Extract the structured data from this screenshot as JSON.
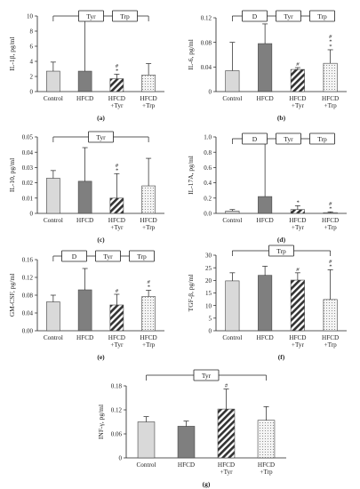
{
  "chart_data": [
    {
      "type": "bar",
      "panel_label": "(a)",
      "ylabel": "IL-1β, pg/ml",
      "ylim": [
        0,
        10
      ],
      "yticks": [
        "0",
        "2",
        "4",
        "6",
        "8",
        "10"
      ],
      "ytick_values": [
        0,
        2,
        4,
        6,
        8,
        10
      ],
      "categories": [
        "Control",
        "HFCD",
        "HFCD\n+Tyr",
        "HFCD\n+Trp"
      ],
      "values": [
        2.7,
        2.7,
        1.7,
        2.2
      ],
      "errors": [
        1.2,
        6.8,
        0.6,
        1.5
      ],
      "marks": [
        "",
        "",
        "#\n*",
        ""
      ],
      "boxes": [
        "Tyr",
        "Trp"
      ]
    },
    {
      "type": "bar",
      "panel_label": "(b)",
      "ylabel": "IL-6, pg/ml",
      "ylim": [
        0,
        0.12
      ],
      "yticks": [
        "0",
        "0.04",
        "0.08",
        "0.12"
      ],
      "ytick_values": [
        0,
        0.04,
        0.08,
        0.12
      ],
      "categories": [
        "Control",
        "HFCD",
        "HFCD\n+Tyr",
        "HFCD\n+Trp"
      ],
      "values": [
        0.034,
        0.078,
        0.036,
        0.046
      ],
      "errors": [
        0.046,
        0.032,
        0.003,
        0.022
      ],
      "marks": [
        "",
        "",
        "#",
        "#\n*\n*"
      ],
      "boxes": [
        "D",
        "Tyr",
        "Trp"
      ]
    },
    {
      "type": "bar",
      "panel_label": "(c)",
      "ylabel": "IL-10, pg/ml",
      "ylim": [
        0,
        0.05
      ],
      "yticks": [
        "0",
        "0.01",
        "0.02",
        "0.03",
        "0.04",
        "0.05"
      ],
      "ytick_values": [
        0,
        0.01,
        0.02,
        0.03,
        0.04,
        0.05
      ],
      "categories": [
        "Control",
        "HFCD",
        "HFCD\n+Tyr",
        "HFCD\n+Trp"
      ],
      "values": [
        0.023,
        0.021,
        0.01,
        0.018
      ],
      "errors": [
        0.005,
        0.022,
        0.016,
        0.018
      ],
      "marks": [
        "",
        "",
        "#\n*",
        ""
      ],
      "boxes": [
        "Tyr"
      ]
    },
    {
      "type": "bar",
      "panel_label": "(d)",
      "ylabel": "IL-17A, pg/ml",
      "ylim": [
        0,
        1.0
      ],
      "yticks": [
        "0.0",
        "0.2",
        "0.4",
        "0.6",
        "0.8",
        "1.0"
      ],
      "ytick_values": [
        0,
        0.2,
        0.4,
        0.6,
        0.8,
        1.0
      ],
      "categories": [
        "Control",
        "HFCD",
        "HFCD\n+Tyr",
        "HFCD\n+Trp"
      ],
      "values": [
        0.03,
        0.22,
        0.05,
        0.01
      ],
      "errors": [
        0.02,
        0.74,
        0.05,
        0.01
      ],
      "marks": [
        "",
        "",
        "*",
        "#\n*"
      ],
      "boxes": [
        "D",
        "Tyr",
        "Trp"
      ]
    },
    {
      "type": "bar",
      "panel_label": "(e)",
      "ylabel": "GM-CSF, pg/ml",
      "ylim": [
        0,
        0.16
      ],
      "yticks": [
        "0.00",
        "0.04",
        "0.08",
        "0.12",
        "0.16"
      ],
      "ytick_values": [
        0,
        0.04,
        0.08,
        0.12,
        0.16
      ],
      "categories": [
        "Control",
        "HFCD",
        "HFCD\n+Tyr",
        "HFCD\n+Trp"
      ],
      "values": [
        0.065,
        0.092,
        0.058,
        0.077
      ],
      "errors": [
        0.015,
        0.048,
        0.024,
        0.014
      ],
      "marks": [
        "",
        "",
        "#",
        "#\n*"
      ],
      "boxes": [
        "D",
        "Tyr",
        "Trp"
      ]
    },
    {
      "type": "bar",
      "panel_label": "(f)",
      "ylabel": "TGF-β, pg/ml",
      "ylim": [
        0,
        30
      ],
      "yticks": [
        "0",
        "5",
        "10",
        "15",
        "20",
        "25",
        "30"
      ],
      "ytick_values": [
        0,
        5,
        10,
        15,
        20,
        25,
        30
      ],
      "categories": [
        "Control",
        "HFCD",
        "HFCD\n+Tyr",
        "HFCD\n+Trp"
      ],
      "values": [
        19.8,
        22,
        20.1,
        12.4
      ],
      "errors": [
        3.2,
        3.6,
        2.9,
        11.8
      ],
      "marks": [
        "",
        "",
        "#",
        "#\n*"
      ],
      "boxes": [
        "Trp"
      ]
    },
    {
      "type": "bar",
      "panel_label": "(g)",
      "ylabel": "INF-γ, pg/ml",
      "ylim": [
        0,
        0.18
      ],
      "yticks": [
        "0",
        "0.06",
        "0.12",
        "0.18"
      ],
      "ytick_values": [
        0,
        0.06,
        0.12,
        0.18
      ],
      "categories": [
        "Control",
        "HFCD",
        "HFCD\n+Tyr",
        "HFCD\n+Trp"
      ],
      "values": [
        0.09,
        0.079,
        0.122,
        0.094
      ],
      "errors": [
        0.013,
        0.013,
        0.05,
        0.034
      ],
      "marks": [
        "",
        "",
        "#",
        ""
      ],
      "boxes": [
        "Tyr"
      ]
    }
  ],
  "bar_styles": [
    "light",
    "dark",
    "hatch",
    "dots"
  ],
  "colors": {
    "light": "#d9d9d9",
    "dark": "#7f7f7f",
    "hatch": "#3a3a3a",
    "dots": "#f2f2f2",
    "axis": "#222222"
  }
}
